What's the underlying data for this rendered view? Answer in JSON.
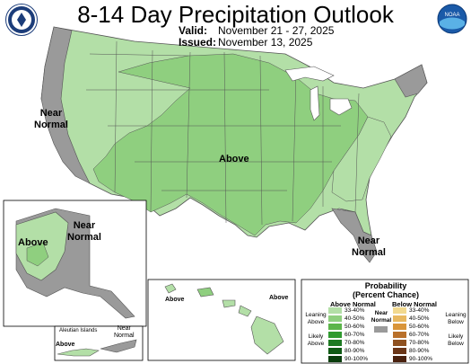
{
  "title": "8-14 Day Precipitation Outlook",
  "valid": {
    "label": "Valid:",
    "value": "November 21 - 27, 2025"
  },
  "issued": {
    "label": "Issued:",
    "value": "November 13, 2025"
  },
  "map_labels": {
    "conus_above": "Above",
    "west_coast_near": "Near\nNormal",
    "southeast_near": "Near\nNormal",
    "alaska_above": "Above",
    "alaska_near": "Near\nNormal",
    "aleutian_title": "Aleutian Islands",
    "aleutian_above": "Above",
    "aleutian_near": "Near\nNormal",
    "hawaii_above_west": "Above",
    "hawaii_above_east": "Above"
  },
  "legend": {
    "title": "Probability\n(Percent Chance)",
    "above_header": "Above Normal",
    "below_header": "Below Normal",
    "near_label": "Near\nNormal",
    "leaning_above": "Leaning\nAbove",
    "likely_above": "Likely\nAbove",
    "leaning_below": "Leaning\nBelow",
    "likely_below": "Likely\nBelow",
    "above_ranges": [
      "33-40%",
      "40-50%",
      "50-60%",
      "60-70%",
      "70-80%",
      "80-90%",
      "90-100%"
    ],
    "below_ranges": [
      "33-40%",
      "40-50%",
      "50-60%",
      "60-70%",
      "70-80%",
      "80-90%",
      "90-100%"
    ],
    "above_colors": [
      "#b3dfa7",
      "#8fcf7f",
      "#5cb54a",
      "#2f9a2f",
      "#1d7a22",
      "#0f5a14",
      "#093d0c"
    ],
    "below_colors": [
      "#f2d98f",
      "#e8b860",
      "#d9953a",
      "#b9702a",
      "#8f5120",
      "#6b3618",
      "#4a220f"
    ],
    "near_color": "#9a9a9a"
  },
  "colors": {
    "above_light": "#b3dfa7",
    "above_mid": "#8fcf7f",
    "near_normal": "#9a9a9a",
    "land_none": "#ffffff",
    "border": "#555555"
  },
  "icons": {
    "left_logo": "doc-seal-icon",
    "right_logo": "noaa-logo-icon"
  }
}
